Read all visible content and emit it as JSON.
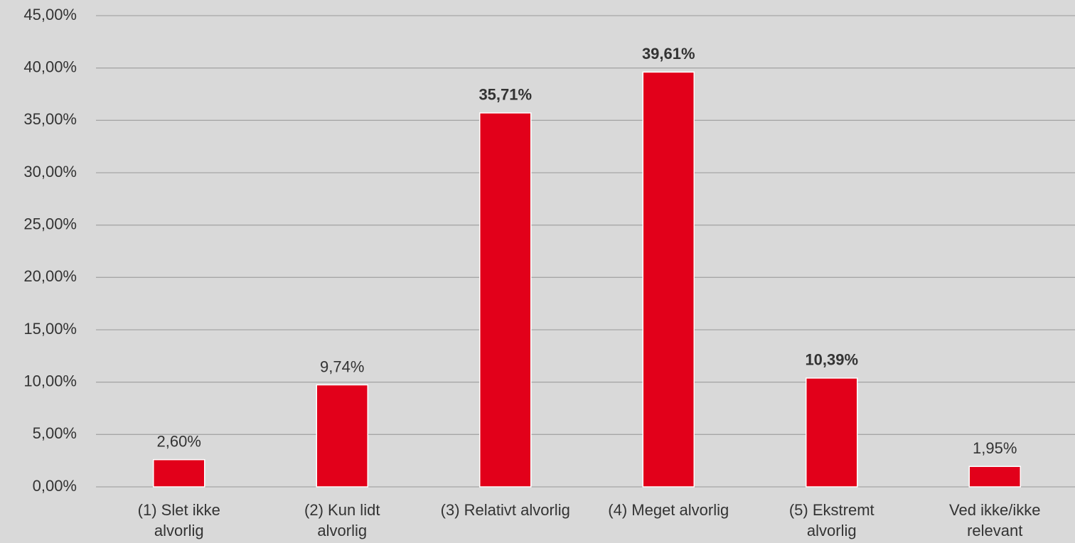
{
  "chart_data": {
    "type": "bar",
    "categories": [
      [
        "(1) Slet ikke",
        "alvorlig"
      ],
      [
        "(2) Kun lidt",
        "alvorlig"
      ],
      [
        "(3) Relativt alvorlig"
      ],
      [
        "(4) Meget alvorlig"
      ],
      [
        "(5) Ekstremt",
        "alvorlig"
      ],
      [
        "Ved ikke/ikke",
        "relevant"
      ]
    ],
    "values": [
      2.6,
      9.74,
      35.71,
      39.61,
      10.39,
      1.95
    ],
    "value_labels": [
      "2,60%",
      "9,74%",
      "35,71%",
      "39,61%",
      "10,39%",
      "1,95%"
    ],
    "value_label_bold": [
      false,
      false,
      true,
      true,
      true,
      false
    ],
    "color": "#e2001a",
    "ylim": [
      0,
      45
    ],
    "yticks": [
      {
        "value": 0,
        "label": "0,00%"
      },
      {
        "value": 5,
        "label": "5,00%"
      },
      {
        "value": 10,
        "label": "10,00%"
      },
      {
        "value": 15,
        "label": "15,00%"
      },
      {
        "value": 20,
        "label": "20,00%"
      },
      {
        "value": 25,
        "label": "25,00%"
      },
      {
        "value": 30,
        "label": "30,00%"
      },
      {
        "value": 35,
        "label": "35,00%"
      },
      {
        "value": 40,
        "label": "40,00%"
      },
      {
        "value": 45,
        "label": "45,00%"
      }
    ],
    "grid": true
  }
}
